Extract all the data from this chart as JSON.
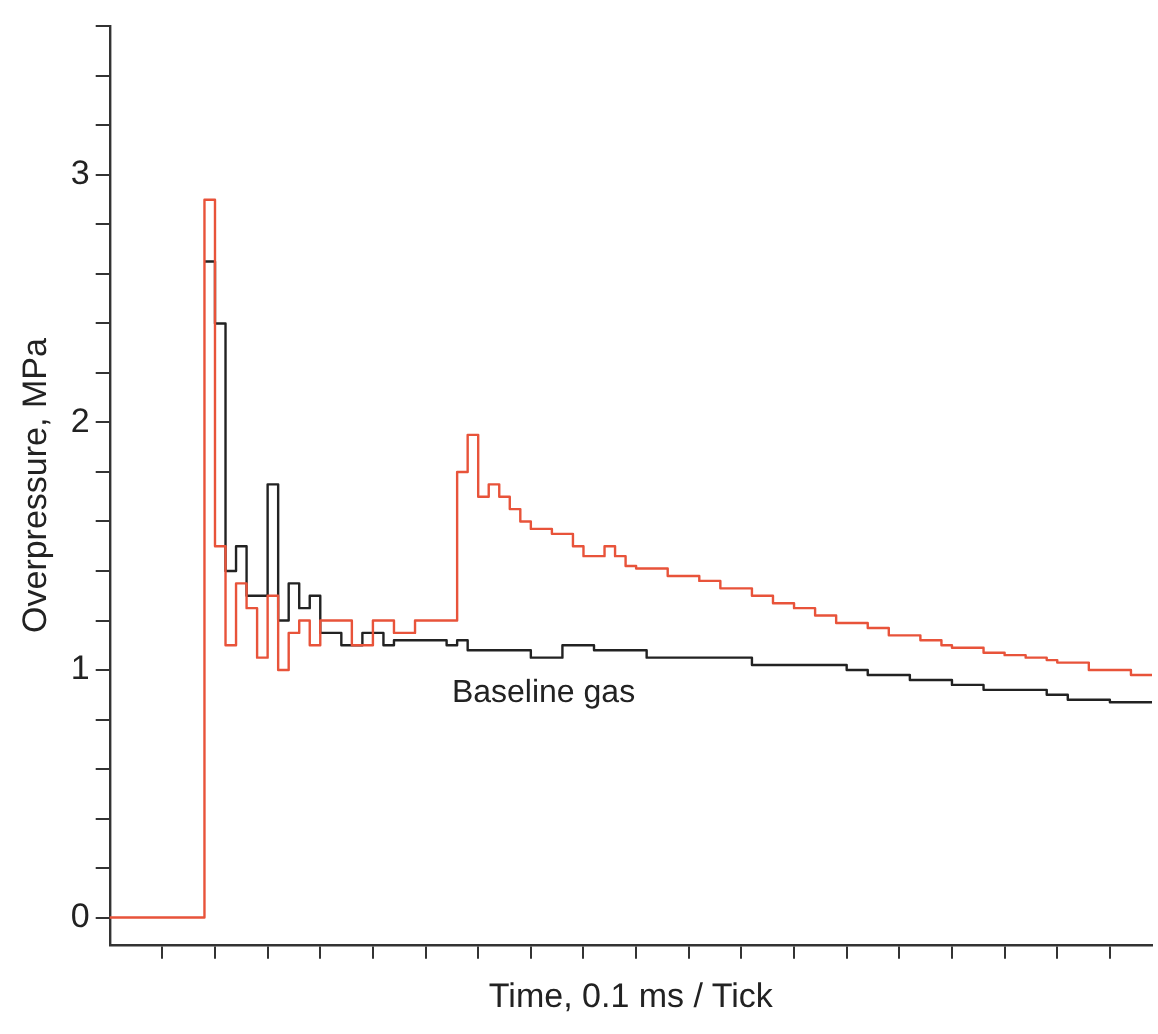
{
  "chart_data": {
    "type": "step",
    "xlabel": "Time, 0.1 ms / Tick",
    "ylabel": "Overpressure, MPa",
    "categories": [
      null,
      null,
      null,
      null,
      null,
      null,
      null,
      null,
      null,
      null,
      null,
      null,
      null,
      null,
      null,
      null,
      null,
      null,
      null,
      null,
      null,
      null,
      null,
      null,
      null,
      null,
      null,
      null,
      null,
      null,
      null,
      null,
      null,
      null,
      null,
      null,
      null,
      null,
      null,
      null,
      null,
      null,
      null,
      null,
      null,
      null,
      null,
      null,
      null,
      null,
      null,
      null,
      null,
      null,
      null,
      null,
      null,
      null,
      null,
      null,
      null,
      null,
      null,
      null,
      null,
      null,
      null,
      null,
      null,
      null,
      null,
      null,
      null,
      null,
      null,
      null,
      null,
      null,
      null,
      null,
      null,
      null,
      null,
      null,
      null,
      null,
      null,
      null,
      null,
      null,
      null,
      null,
      null,
      null,
      null,
      null,
      null,
      null,
      null,
      null
    ],
    "series": [
      {
        "color": "#e8533a",
        "values": [
          0,
          0,
          0,
          0,
          0,
          0,
          0,
          0,
          0,
          2.9,
          1.5,
          1.1,
          1.35,
          1.25,
          1.05,
          1.3,
          1.0,
          1.15,
          1.2,
          1.1,
          1.2,
          1.2,
          1.2,
          1.1,
          1.1,
          1.2,
          1.2,
          1.15,
          1.15,
          1.2,
          1.2,
          1.2,
          1.2,
          1.8,
          1.95,
          1.7,
          1.75,
          1.7,
          1.65,
          1.6,
          1.57,
          1.57,
          1.55,
          1.55,
          1.5,
          1.46,
          1.46,
          1.5,
          1.46,
          1.42,
          1.41,
          1.41,
          1.41,
          1.38,
          1.38,
          1.38,
          1.36,
          1.36,
          1.33,
          1.33,
          1.33,
          1.3,
          1.3,
          1.27,
          1.27,
          1.25,
          1.25,
          1.22,
          1.22,
          1.19,
          1.19,
          1.19,
          1.17,
          1.17,
          1.14,
          1.14,
          1.14,
          1.12,
          1.12,
          1.1,
          1.09,
          1.09,
          1.09,
          1.07,
          1.07,
          1.06,
          1.06,
          1.05,
          1.05,
          1.04,
          1.03,
          1.03,
          1.03,
          1.0,
          1.0,
          1.0,
          1.0,
          0.98,
          0.98,
          0.98
        ]
      },
      {
        "name": "Baseline gas",
        "color": "#222222",
        "values": [
          null,
          null,
          null,
          null,
          null,
          null,
          null,
          null,
          null,
          2.65,
          2.4,
          1.4,
          1.5,
          1.3,
          1.3,
          1.75,
          1.2,
          1.35,
          1.25,
          1.3,
          1.15,
          1.15,
          1.1,
          1.1,
          1.15,
          1.15,
          1.1,
          1.12,
          1.12,
          1.12,
          1.12,
          1.12,
          1.1,
          1.12,
          1.08,
          1.08,
          1.08,
          1.08,
          1.08,
          1.08,
          1.05,
          1.05,
          1.05,
          1.1,
          1.1,
          1.1,
          1.08,
          1.08,
          1.08,
          1.08,
          1.08,
          1.05,
          1.05,
          1.05,
          1.05,
          1.05,
          1.05,
          1.05,
          1.05,
          1.05,
          1.05,
          1.02,
          1.02,
          1.02,
          1.02,
          1.02,
          1.02,
          1.02,
          1.02,
          1.02,
          1.0,
          1.0,
          0.98,
          0.98,
          0.98,
          0.98,
          0.96,
          0.96,
          0.96,
          0.96,
          0.94,
          0.94,
          0.94,
          0.92,
          0.92,
          0.92,
          0.92,
          0.92,
          0.92,
          0.9,
          0.9,
          0.88,
          0.88,
          0.88,
          0.88,
          0.87,
          0.87,
          0.87,
          0.87,
          0.87
        ]
      }
    ],
    "ylim": [
      -0.11,
      3.6
    ],
    "yticks": [
      0,
      {
        "value": 0.2,
        "label": null
      },
      {
        "value": 0.4,
        "label": null
      },
      {
        "value": 0.6,
        "label": null
      },
      {
        "value": 0.8,
        "label": null
      },
      1,
      {
        "value": 1.2,
        "label": null
      },
      {
        "value": 1.4,
        "label": null
      },
      {
        "value": 1.6,
        "label": null
      },
      {
        "value": 1.8,
        "label": null
      },
      2,
      {
        "value": 2.2,
        "label": null
      },
      {
        "value": 2.4,
        "label": null
      },
      {
        "value": 2.6,
        "label": null
      },
      {
        "value": 2.8,
        "label": null
      },
      3,
      {
        "value": 3.2,
        "label": null
      },
      {
        "value": 3.4,
        "label": null
      },
      {
        "value": 3.6,
        "label": null
      }
    ],
    "tick_labels": "y",
    "grid": false,
    "legend": false
  }
}
